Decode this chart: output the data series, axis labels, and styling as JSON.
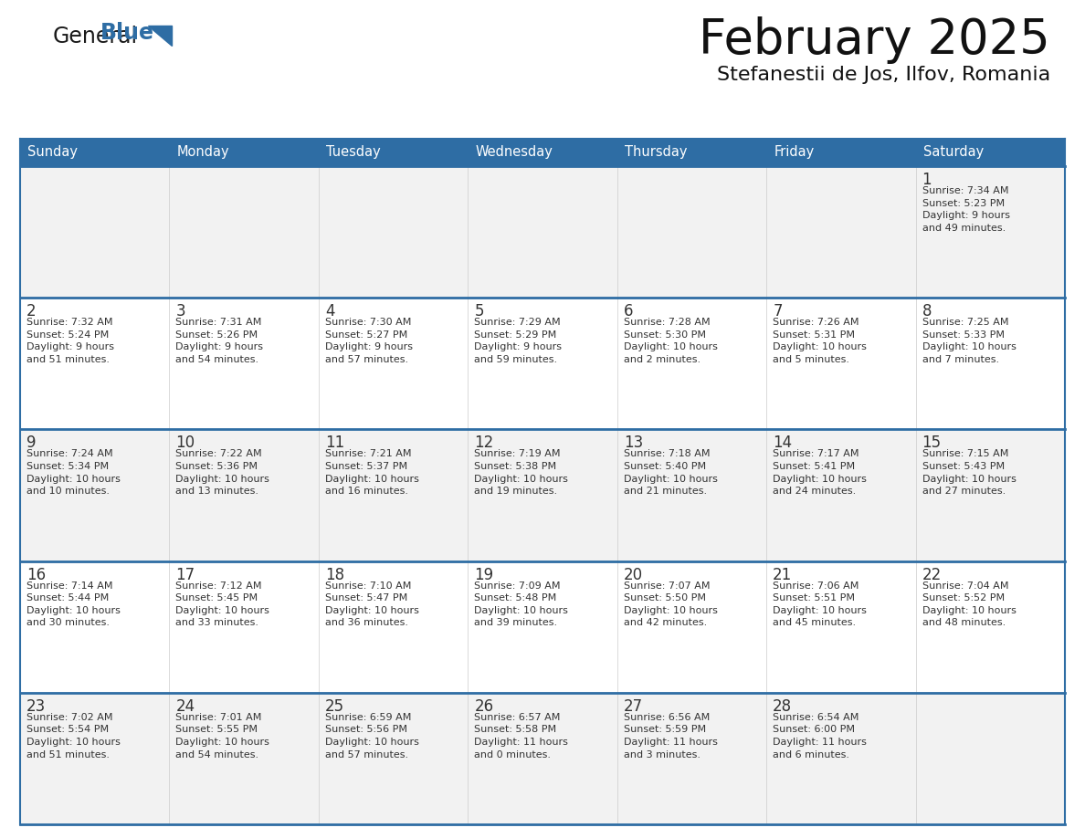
{
  "title": "February 2025",
  "subtitle": "Stefanestii de Jos, Ilfov, Romania",
  "days_of_week": [
    "Sunday",
    "Monday",
    "Tuesday",
    "Wednesday",
    "Thursday",
    "Friday",
    "Saturday"
  ],
  "header_bg": "#2E6DA4",
  "header_text": "#FFFFFF",
  "cell_bg_odd": "#F2F2F2",
  "cell_bg_even": "#FFFFFF",
  "day_number_color": "#333333",
  "info_text_color": "#333333",
  "border_color": "#2E6DA4",
  "separator_color": "#AAAAAA",
  "logo_general_color": "#1a1a1a",
  "logo_blue_color": "#2E6DA4",
  "calendar_data": [
    [
      null,
      null,
      null,
      null,
      null,
      null,
      {
        "day": "1",
        "sunrise": "7:34 AM",
        "sunset": "5:23 PM",
        "daylight": "9 hours\nand 49 minutes."
      }
    ],
    [
      {
        "day": "2",
        "sunrise": "7:32 AM",
        "sunset": "5:24 PM",
        "daylight": "9 hours\nand 51 minutes."
      },
      {
        "day": "3",
        "sunrise": "7:31 AM",
        "sunset": "5:26 PM",
        "daylight": "9 hours\nand 54 minutes."
      },
      {
        "day": "4",
        "sunrise": "7:30 AM",
        "sunset": "5:27 PM",
        "daylight": "9 hours\nand 57 minutes."
      },
      {
        "day": "5",
        "sunrise": "7:29 AM",
        "sunset": "5:29 PM",
        "daylight": "9 hours\nand 59 minutes."
      },
      {
        "day": "6",
        "sunrise": "7:28 AM",
        "sunset": "5:30 PM",
        "daylight": "10 hours\nand 2 minutes."
      },
      {
        "day": "7",
        "sunrise": "7:26 AM",
        "sunset": "5:31 PM",
        "daylight": "10 hours\nand 5 minutes."
      },
      {
        "day": "8",
        "sunrise": "7:25 AM",
        "sunset": "5:33 PM",
        "daylight": "10 hours\nand 7 minutes."
      }
    ],
    [
      {
        "day": "9",
        "sunrise": "7:24 AM",
        "sunset": "5:34 PM",
        "daylight": "10 hours\nand 10 minutes."
      },
      {
        "day": "10",
        "sunrise": "7:22 AM",
        "sunset": "5:36 PM",
        "daylight": "10 hours\nand 13 minutes."
      },
      {
        "day": "11",
        "sunrise": "7:21 AM",
        "sunset": "5:37 PM",
        "daylight": "10 hours\nand 16 minutes."
      },
      {
        "day": "12",
        "sunrise": "7:19 AM",
        "sunset": "5:38 PM",
        "daylight": "10 hours\nand 19 minutes."
      },
      {
        "day": "13",
        "sunrise": "7:18 AM",
        "sunset": "5:40 PM",
        "daylight": "10 hours\nand 21 minutes."
      },
      {
        "day": "14",
        "sunrise": "7:17 AM",
        "sunset": "5:41 PM",
        "daylight": "10 hours\nand 24 minutes."
      },
      {
        "day": "15",
        "sunrise": "7:15 AM",
        "sunset": "5:43 PM",
        "daylight": "10 hours\nand 27 minutes."
      }
    ],
    [
      {
        "day": "16",
        "sunrise": "7:14 AM",
        "sunset": "5:44 PM",
        "daylight": "10 hours\nand 30 minutes."
      },
      {
        "day": "17",
        "sunrise": "7:12 AM",
        "sunset": "5:45 PM",
        "daylight": "10 hours\nand 33 minutes."
      },
      {
        "day": "18",
        "sunrise": "7:10 AM",
        "sunset": "5:47 PM",
        "daylight": "10 hours\nand 36 minutes."
      },
      {
        "day": "19",
        "sunrise": "7:09 AM",
        "sunset": "5:48 PM",
        "daylight": "10 hours\nand 39 minutes."
      },
      {
        "day": "20",
        "sunrise": "7:07 AM",
        "sunset": "5:50 PM",
        "daylight": "10 hours\nand 42 minutes."
      },
      {
        "day": "21",
        "sunrise": "7:06 AM",
        "sunset": "5:51 PM",
        "daylight": "10 hours\nand 45 minutes."
      },
      {
        "day": "22",
        "sunrise": "7:04 AM",
        "sunset": "5:52 PM",
        "daylight": "10 hours\nand 48 minutes."
      }
    ],
    [
      {
        "day": "23",
        "sunrise": "7:02 AM",
        "sunset": "5:54 PM",
        "daylight": "10 hours\nand 51 minutes."
      },
      {
        "day": "24",
        "sunrise": "7:01 AM",
        "sunset": "5:55 PM",
        "daylight": "10 hours\nand 54 minutes."
      },
      {
        "day": "25",
        "sunrise": "6:59 AM",
        "sunset": "5:56 PM",
        "daylight": "10 hours\nand 57 minutes."
      },
      {
        "day": "26",
        "sunrise": "6:57 AM",
        "sunset": "5:58 PM",
        "daylight": "11 hours\nand 0 minutes."
      },
      {
        "day": "27",
        "sunrise": "6:56 AM",
        "sunset": "5:59 PM",
        "daylight": "11 hours\nand 3 minutes."
      },
      {
        "day": "28",
        "sunrise": "6:54 AM",
        "sunset": "6:00 PM",
        "daylight": "11 hours\nand 6 minutes."
      },
      null
    ]
  ]
}
